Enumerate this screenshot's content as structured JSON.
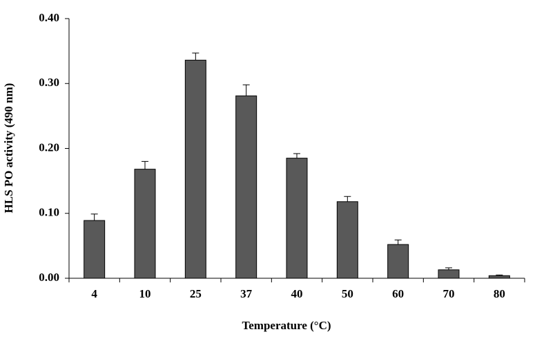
{
  "chart_data": {
    "type": "bar",
    "x_label": "Temperature (°C)",
    "y_label": "HLS PO activity (490 nm)",
    "categories": [
      "4",
      "10",
      "25",
      "37",
      "40",
      "50",
      "60",
      "70",
      "80"
    ],
    "values": [
      0.089,
      0.168,
      0.336,
      0.281,
      0.185,
      0.118,
      0.052,
      0.013,
      0.004
    ],
    "errors": [
      0.01,
      0.012,
      0.011,
      0.017,
      0.007,
      0.008,
      0.007,
      0.003,
      0.001
    ],
    "color": "#595959",
    "ylim": [
      0,
      0.4
    ],
    "yticks": [
      {
        "value": 0,
        "label": "0.00"
      },
      {
        "value": 0.1,
        "label": "0.10"
      },
      {
        "value": 0.2,
        "label": "0.20"
      },
      {
        "value": 0.3,
        "label": "0.30"
      },
      {
        "value": 0.4,
        "label": "0.40"
      }
    ]
  }
}
